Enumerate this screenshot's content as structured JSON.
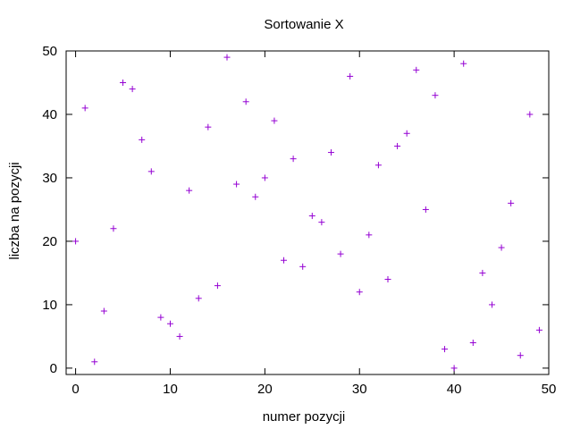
{
  "chart_data": {
    "type": "scatter",
    "title": "Sortowanie X",
    "xlabel": "numer pozycji",
    "ylabel": "liczba na pozycji",
    "xlim": [
      -1,
      50
    ],
    "ylim": [
      -1,
      50
    ],
    "xticks": [
      0,
      10,
      20,
      30,
      40,
      50
    ],
    "yticks": [
      0,
      10,
      20,
      30,
      40,
      50
    ],
    "grid": false,
    "marker": "+",
    "series": [
      {
        "color": "#9400d3",
        "x": [
          0,
          1,
          2,
          3,
          4,
          5,
          6,
          7,
          8,
          9,
          10,
          11,
          12,
          13,
          14,
          15,
          16,
          17,
          18,
          19,
          20,
          21,
          22,
          23,
          24,
          25,
          26,
          27,
          28,
          29,
          30,
          31,
          32,
          33,
          34,
          35,
          36,
          37,
          38,
          39,
          40,
          41,
          42,
          43,
          44,
          45,
          46,
          47,
          48,
          49
        ],
        "y": [
          20,
          41,
          1,
          9,
          22,
          45,
          44,
          36,
          31,
          8,
          7,
          5,
          28,
          11,
          38,
          13,
          49,
          29,
          42,
          27,
          30,
          39,
          17,
          33,
          16,
          24,
          23,
          34,
          18,
          46,
          12,
          21,
          32,
          14,
          35,
          37,
          47,
          25,
          43,
          3,
          0,
          48,
          4,
          15,
          10,
          19,
          26,
          2,
          40,
          6
        ]
      }
    ]
  }
}
